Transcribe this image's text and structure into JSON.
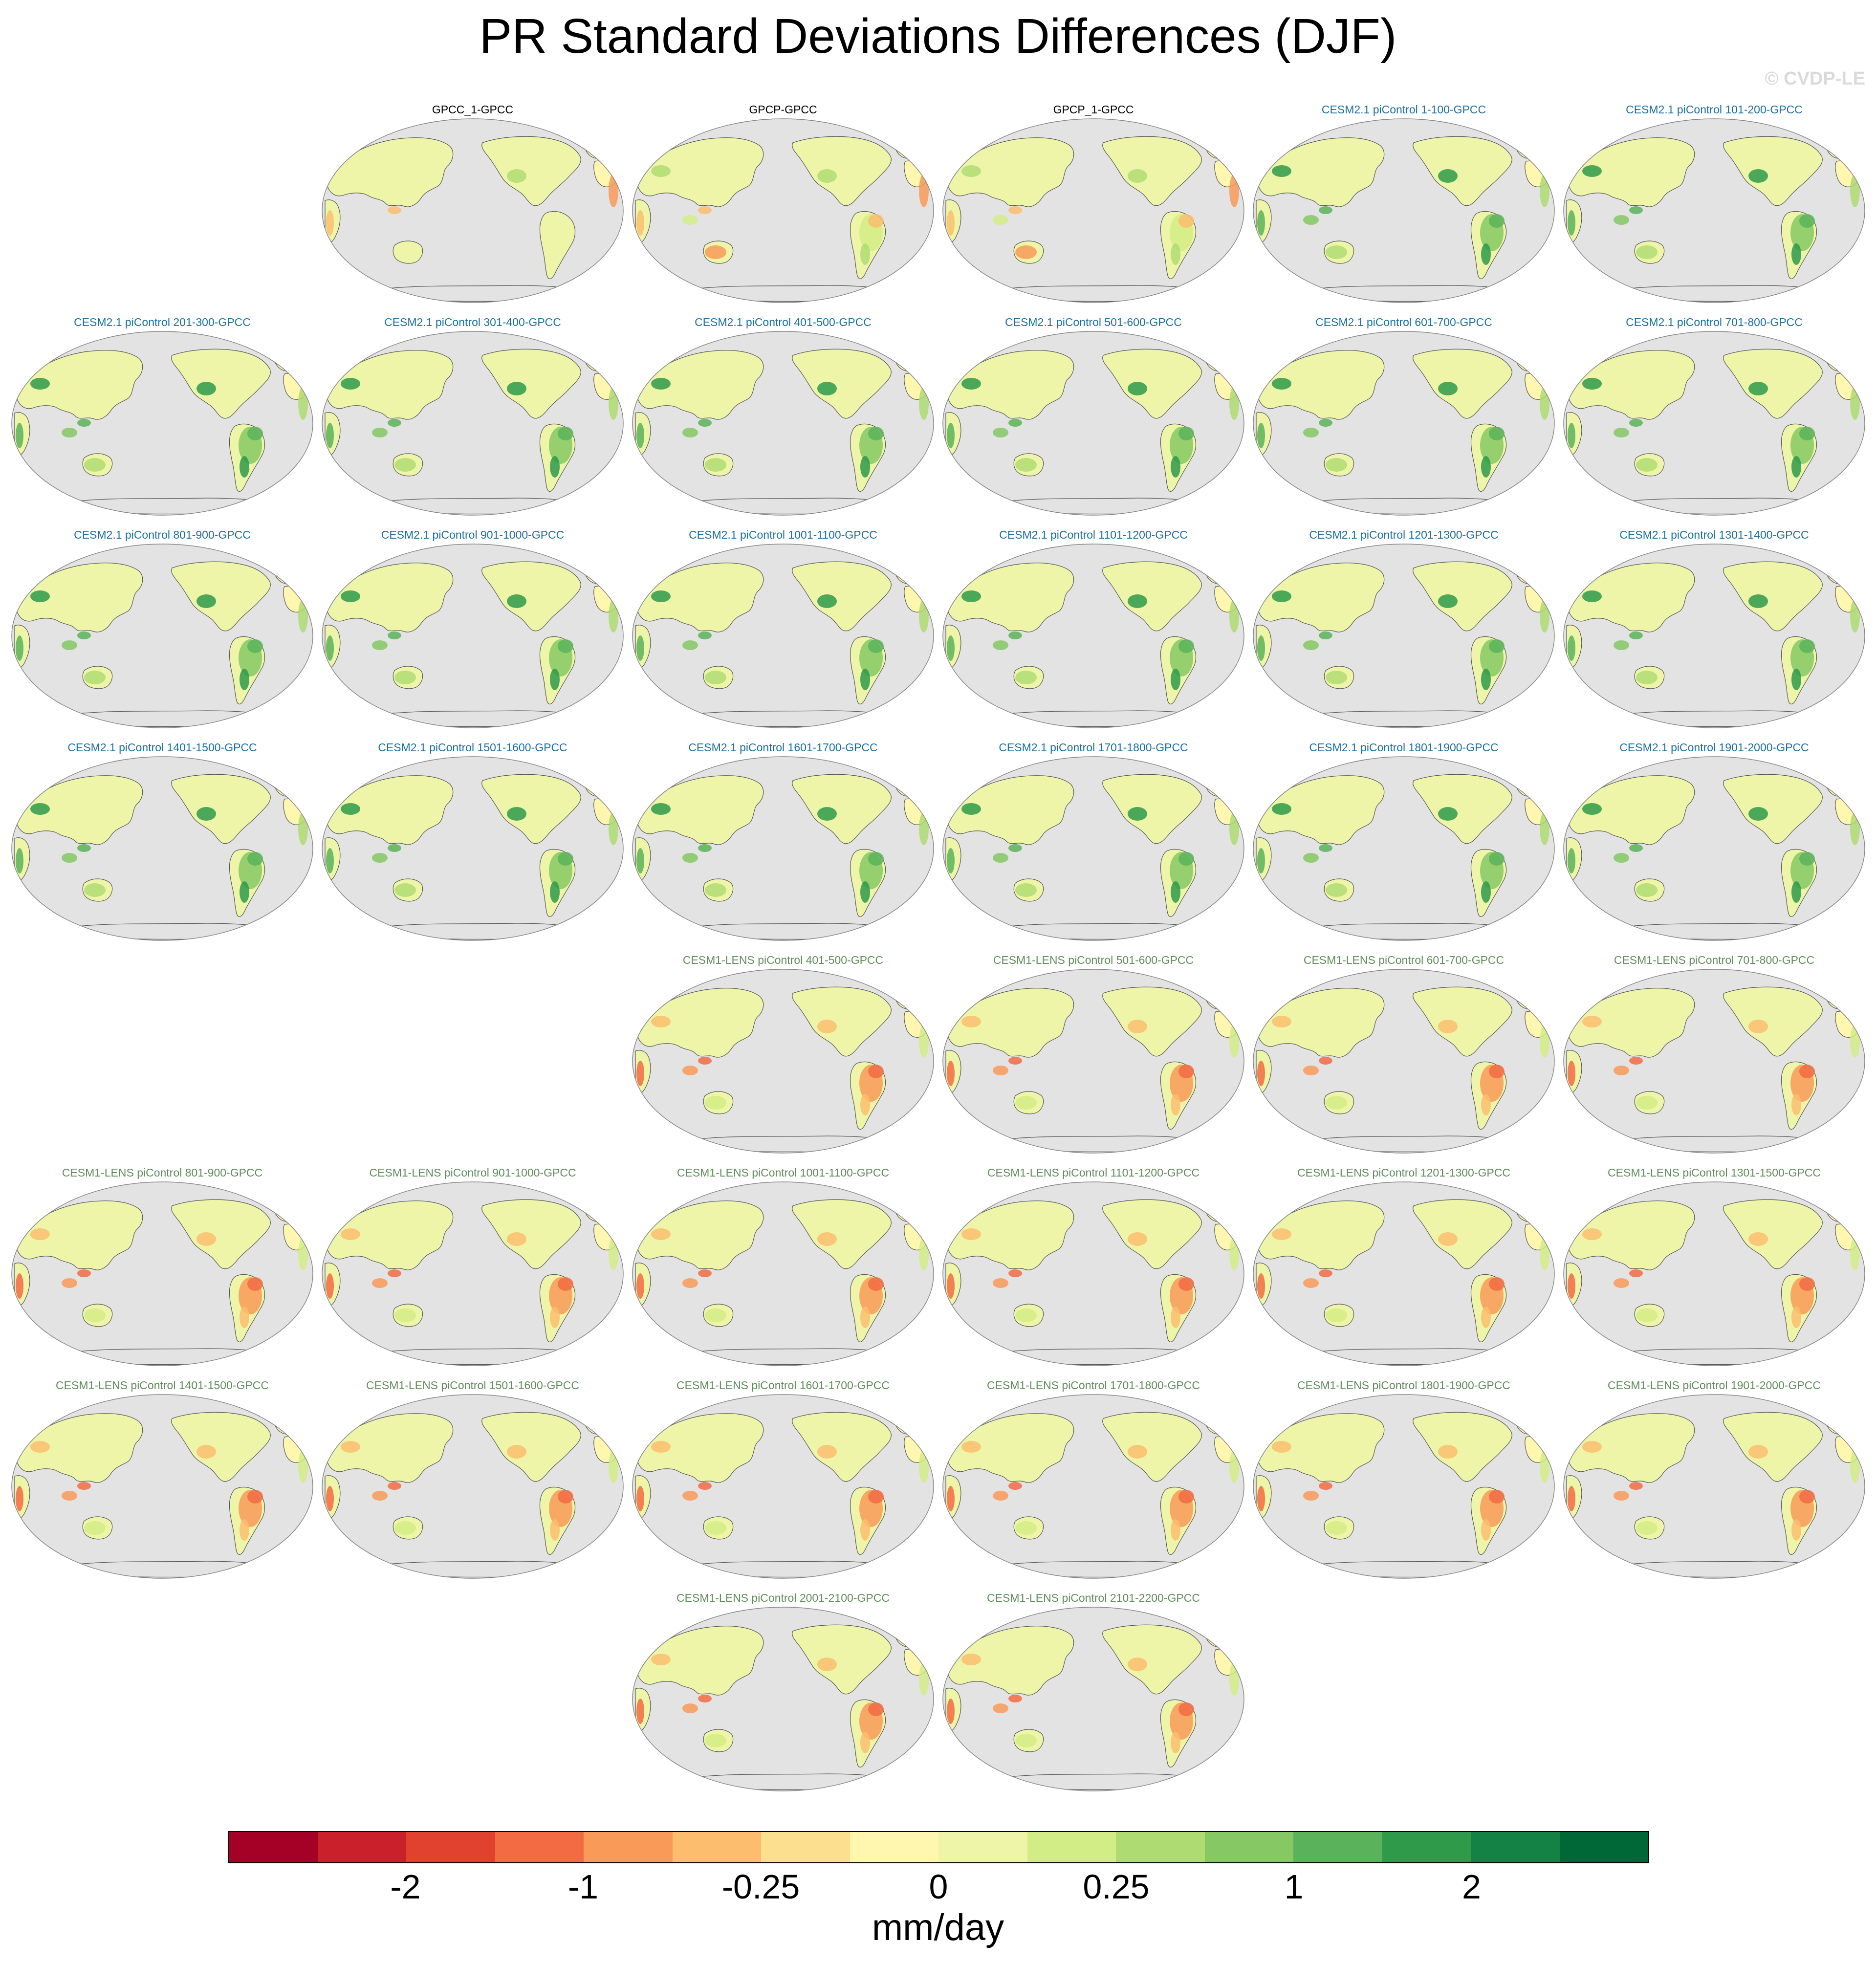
{
  "title": "PR Standard Deviations Differences (DJF)",
  "watermark": "© CVDP-LE",
  "colors": {
    "obs_title": "#000000",
    "cesm2_title": "#1a6fa0",
    "cesm1_title": "#5f8c5a",
    "ocean": "#e3e3e3",
    "coast": "#555555"
  },
  "panels": [
    {
      "title": "GPCC_1-GPCC",
      "group": "obs"
    },
    {
      "title": "GPCP-GPCC",
      "group": "obs"
    },
    {
      "title": "GPCP_1-GPCC",
      "group": "obs"
    },
    {
      "title": "CESM2.1 piControl 1-100-GPCC",
      "group": "cesm2"
    },
    {
      "title": "CESM2.1 piControl 101-200-GPCC",
      "group": "cesm2"
    },
    {
      "title": "CESM2.1 piControl 201-300-GPCC",
      "group": "cesm2"
    },
    {
      "title": "CESM2.1 piControl 301-400-GPCC",
      "group": "cesm2"
    },
    {
      "title": "CESM2.1 piControl 401-500-GPCC",
      "group": "cesm2"
    },
    {
      "title": "CESM2.1 piControl 501-600-GPCC",
      "group": "cesm2"
    },
    {
      "title": "CESM2.1 piControl 601-700-GPCC",
      "group": "cesm2"
    },
    {
      "title": "CESM2.1 piControl 701-800-GPCC",
      "group": "cesm2"
    },
    {
      "title": "CESM2.1 piControl 801-900-GPCC",
      "group": "cesm2"
    },
    {
      "title": "CESM2.1 piControl 901-1000-GPCC",
      "group": "cesm2"
    },
    {
      "title": "CESM2.1 piControl 1001-1100-GPCC",
      "group": "cesm2"
    },
    {
      "title": "CESM2.1 piControl 1101-1200-GPCC",
      "group": "cesm2"
    },
    {
      "title": "CESM2.1 piControl 1201-1300-GPCC",
      "group": "cesm2"
    },
    {
      "title": "CESM2.1 piControl 1301-1400-GPCC",
      "group": "cesm2"
    },
    {
      "title": "CESM2.1 piControl 1401-1500-GPCC",
      "group": "cesm2"
    },
    {
      "title": "CESM2.1 piControl 1501-1600-GPCC",
      "group": "cesm2"
    },
    {
      "title": "CESM2.1 piControl 1601-1700-GPCC",
      "group": "cesm2"
    },
    {
      "title": "CESM2.1 piControl 1701-1800-GPCC",
      "group": "cesm2"
    },
    {
      "title": "CESM2.1 piControl 1801-1900-GPCC",
      "group": "cesm2"
    },
    {
      "title": "CESM2.1 piControl 1901-2000-GPCC",
      "group": "cesm2"
    },
    {
      "title": "CESM1-LENS piControl 401-500-GPCC",
      "group": "cesm1"
    },
    {
      "title": "CESM1-LENS piControl 501-600-GPCC",
      "group": "cesm1"
    },
    {
      "title": "CESM1-LENS piControl 601-700-GPCC",
      "group": "cesm1"
    },
    {
      "title": "CESM1-LENS piControl 701-800-GPCC",
      "group": "cesm1"
    },
    {
      "title": "CESM1-LENS piControl 801-900-GPCC",
      "group": "cesm1"
    },
    {
      "title": "CESM1-LENS piControl 901-1000-GPCC",
      "group": "cesm1"
    },
    {
      "title": "CESM1-LENS piControl 1001-1100-GPCC",
      "group": "cesm1"
    },
    {
      "title": "CESM1-LENS piControl 1101-1200-GPCC",
      "group": "cesm1"
    },
    {
      "title": "CESM1-LENS piControl 1201-1300-GPCC",
      "group": "cesm1"
    },
    {
      "title": "CESM1-LENS piControl 1301-1500-GPCC",
      "group": "cesm1"
    },
    {
      "title": "CESM1-LENS piControl 1401-1500-GPCC",
      "group": "cesm1"
    },
    {
      "title": "CESM1-LENS piControl 1501-1600-GPCC",
      "group": "cesm1"
    },
    {
      "title": "CESM1-LENS piControl 1601-1700-GPCC",
      "group": "cesm1"
    },
    {
      "title": "CESM1-LENS piControl 1701-1800-GPCC",
      "group": "cesm1"
    },
    {
      "title": "CESM1-LENS piControl 1801-1900-GPCC",
      "group": "cesm1"
    },
    {
      "title": "CESM1-LENS piControl 1901-2000-GPCC",
      "group": "cesm1"
    },
    {
      "title": "CESM1-LENS piControl 2001-2100-GPCC",
      "group": "cesm1"
    },
    {
      "title": "CESM1-LENS piControl 2101-2200-GPCC",
      "group": "cesm1"
    }
  ],
  "colorbar": {
    "units": "mm/day",
    "labels": [
      "-2",
      "-1",
      "-0.25",
      "0",
      "0.25",
      "1",
      "2"
    ],
    "colors": [
      "#a50026",
      "#c9202b",
      "#e0422f",
      "#f26b43",
      "#f99a59",
      "#fcbd6e",
      "#fddf90",
      "#fff7b0",
      "#eef5a8",
      "#d2ec86",
      "#afdc72",
      "#85c864",
      "#5ab35a",
      "#2e9a4a",
      "#148245",
      "#006837"
    ]
  }
}
